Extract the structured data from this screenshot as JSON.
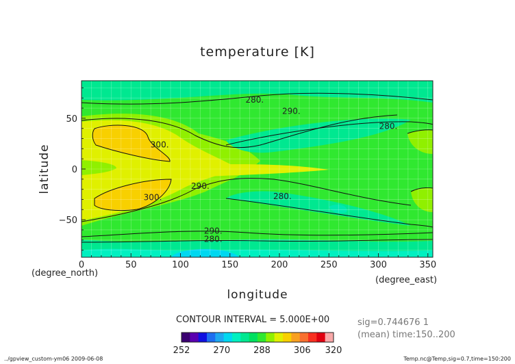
{
  "chart_data": {
    "type": "heatmap",
    "title": "temperature [K]",
    "xlabel": "longitude",
    "ylabel": "latitude",
    "x_units": "(degree_east)",
    "y_units": "(degree_north)",
    "xlim": [
      0,
      355
    ],
    "ylim": [
      -87,
      87
    ],
    "x_ticks": [
      0,
      50,
      100,
      150,
      200,
      250,
      300,
      350
    ],
    "y_ticks": [
      50,
      0,
      -50
    ],
    "contour_labels": [
      {
        "x": 175,
        "y": 68,
        "text": "280."
      },
      {
        "x": 212,
        "y": 57,
        "text": "290."
      },
      {
        "x": 310,
        "y": 42,
        "text": "280."
      },
      {
        "x": 79,
        "y": 24,
        "text": "300."
      },
      {
        "x": 72,
        "y": -28,
        "text": "300."
      },
      {
        "x": 120,
        "y": -17,
        "text": "290."
      },
      {
        "x": 203,
        "y": -27,
        "text": "280."
      },
      {
        "x": 133,
        "y": -61,
        "text": "290."
      },
      {
        "x": 133,
        "y": -69,
        "text": "280."
      }
    ],
    "colorbar": {
      "levels": [
        252,
        256,
        260,
        264,
        268,
        272,
        276,
        280,
        284,
        288,
        292,
        296,
        300,
        304,
        308,
        312,
        316,
        320
      ],
      "tick_labels": [
        "252",
        "270",
        "288",
        "306",
        "320"
      ],
      "colors": [
        "#3a0070",
        "#5a00b0",
        "#1010e0",
        "#1e6ef0",
        "#1ea8f0",
        "#00d8f0",
        "#00f0c0",
        "#00e890",
        "#00e060",
        "#30e830",
        "#90f000",
        "#e0f000",
        "#f8d000",
        "#f8a020",
        "#f87030",
        "#f83020",
        "#e00010",
        "#f8a8a8"
      ]
    },
    "contour_interval": "CONTOUR INTERVAL = 5.000E+00",
    "grid": true
  },
  "info": {
    "sig": "sig=0.744676 1",
    "mean": "(mean) time:150..200"
  },
  "footer": {
    "left": "../gpview_custom-ym06  2009-06-08",
    "right": "Temp.nc@Temp,sig=0.7,time=150:200"
  }
}
